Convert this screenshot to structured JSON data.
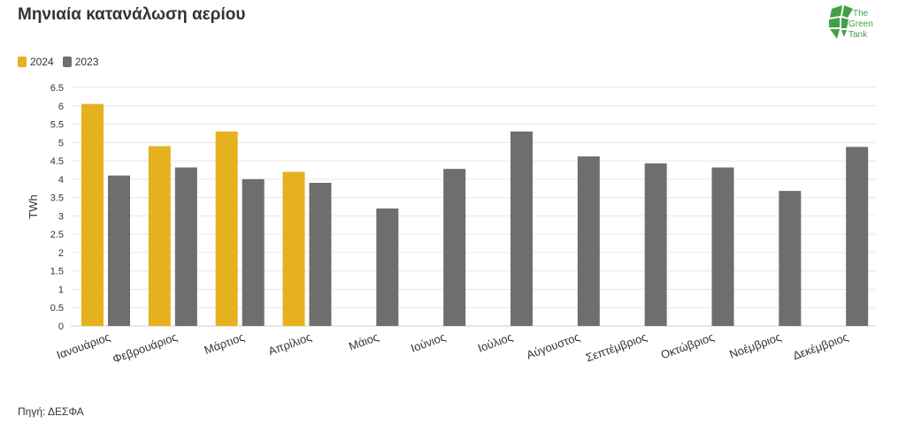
{
  "title": "Μηνιαία κατανάλωση αερίου",
  "source": "Πηγή: ΔΕΣΦΑ",
  "logo": {
    "lines": [
      "The",
      "Green",
      "Tank"
    ]
  },
  "colors": {
    "2024": "#E6B11E",
    "2023": "#6E6E6E",
    "grid": "#e6e6e6",
    "logo": "#43A047"
  },
  "chart_data": {
    "type": "bar",
    "ylabel": "TWh",
    "xlabel": "",
    "ylim": [
      0,
      6.5
    ],
    "yticks": [
      0,
      0.5,
      1,
      1.5,
      2,
      2.5,
      3,
      3.5,
      4,
      4.5,
      5,
      5.5,
      6,
      6.5
    ],
    "ytick_labels": [
      "0",
      "0.5",
      "1",
      "1.5",
      "2",
      "2.5",
      "3",
      "3.5",
      "4",
      "4.5",
      "5",
      "5.5",
      "6",
      "6.5"
    ],
    "grid": true,
    "legend": "top-left",
    "categories": [
      "Ιανουάριος",
      "Φεβρουάριος",
      "Μάρτιος",
      "Απρίλιος",
      "Μάιος",
      "Ιούνιος",
      "Ιούλιος",
      "Αύγουστος",
      "Σεπτέμβριος",
      "Οκτώβριος",
      "Νοέμβριος",
      "Δεκέμβριος"
    ],
    "series": [
      {
        "name": "2024",
        "values": [
          6.05,
          4.9,
          5.3,
          4.2,
          null,
          null,
          null,
          null,
          null,
          null,
          null,
          null
        ]
      },
      {
        "name": "2023",
        "values": [
          4.1,
          4.32,
          4.0,
          3.9,
          3.2,
          4.28,
          5.3,
          4.62,
          4.43,
          4.32,
          3.68,
          4.88
        ]
      }
    ]
  }
}
